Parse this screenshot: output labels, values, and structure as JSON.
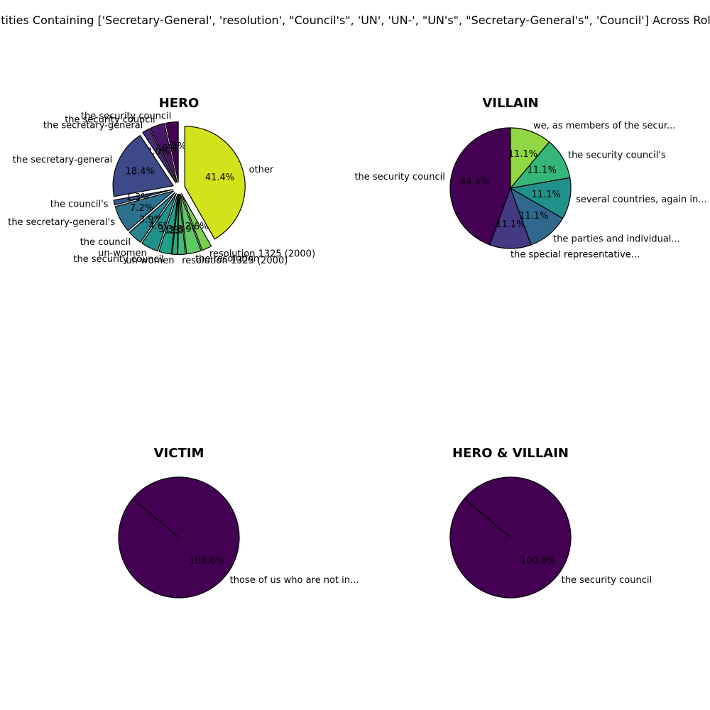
{
  "figure": {
    "suptitle": "Entities Containing ['Secretary-General', 'resolution', \"Council's\", 'UN', 'UN-', \"UN's\", \"Secretary-General's\", 'Council'] Across Roles"
  },
  "chart_data": [
    {
      "type": "pie",
      "title": "HERO",
      "start_angle": 90,
      "direction": "counterclockwise",
      "explode": 0.1,
      "slices": [
        {
          "label": "the security council",
          "value": 3.3,
          "pct_label": "3.3%",
          "color": "#440154"
        },
        {
          "label": "the security  council",
          "value": 3.9,
          "pct_label": "3.9%",
          "color": "#481769"
        },
        {
          "label": "the  secretary-general",
          "value": 2.0,
          "pct_label": "2.0%",
          "color": "#472a7a"
        },
        {
          "label": "the secretary-general",
          "value": 18.4,
          "pct_label": "18.4%",
          "color": "#3e4989"
        },
        {
          "label": "the council's",
          "value": 1.3,
          "pct_label": "1.3%",
          "color": "#375a8c"
        },
        {
          "label": "the secretary-general's",
          "value": 7.2,
          "pct_label": "7.2%",
          "color": "#2c718e"
        },
        {
          "label": "the council",
          "value": 3.9,
          "pct_label": "3.9%",
          "color": "#26838f"
        },
        {
          "label": "un-women",
          "value": 4.6,
          "pct_label": "4.6%",
          "color": "#21918c"
        },
        {
          "label": "the  security council",
          "value": 3.3,
          "pct_label": "3.3%",
          "color": "#1fa188"
        },
        {
          "label": "un women",
          "value": 1.3,
          "pct_label": "1.3%",
          "color": "#28ae80"
        },
        {
          "label": "resolution 1325  (2000)",
          "value": 2.0,
          "pct_label": "2.0%",
          "color": "#3fbc73"
        },
        {
          "label": "the resolution",
          "value": 3.9,
          "pct_label": "3.9%",
          "color": "#5ec962"
        },
        {
          "label": "resolution 1325 (2000)",
          "value": 2.6,
          "pct_label": "2.6%",
          "color": "#7ad151"
        },
        {
          "label": "other",
          "value": 41.4,
          "pct_label": "41.4%",
          "color": "#d2e21b"
        }
      ]
    },
    {
      "type": "pie",
      "title": "VILLAIN",
      "start_angle": 90,
      "direction": "counterclockwise",
      "explode": 0,
      "slices": [
        {
          "label": "the security council",
          "value": 44.4,
          "pct_label": "44.4%",
          "color": "#440154"
        },
        {
          "label": "the special  representative...",
          "value": 11.1,
          "pct_label": "11.1%",
          "color": "#443983"
        },
        {
          "label": "the parties and  individual...",
          "value": 11.1,
          "pct_label": "11.1%",
          "color": "#31688e"
        },
        {
          "label": "several countries, again in...",
          "value": 11.1,
          "pct_label": "11.1%",
          "color": "#21918c"
        },
        {
          "label": "the security council's",
          "value": 11.1,
          "pct_label": "11.1%",
          "color": "#35b779"
        },
        {
          "label": "we, as members of the secur...",
          "value": 11.1,
          "pct_label": "11.1%",
          "color": "#90d743"
        }
      ]
    },
    {
      "type": "pie",
      "title": "VICTIM",
      "start_angle": 140,
      "direction": "counterclockwise",
      "explode": 0,
      "slices": [
        {
          "label": "those of us who are not  in...",
          "value": 100.0,
          "pct_label": "100.0%",
          "color": "#440154"
        }
      ]
    },
    {
      "type": "pie",
      "title": "HERO & VILLAIN",
      "start_angle": 140,
      "direction": "counterclockwise",
      "explode": 0,
      "slices": [
        {
          "label": "the security council",
          "value": 100.0,
          "pct_label": "100.0%",
          "color": "#440154"
        }
      ]
    }
  ]
}
